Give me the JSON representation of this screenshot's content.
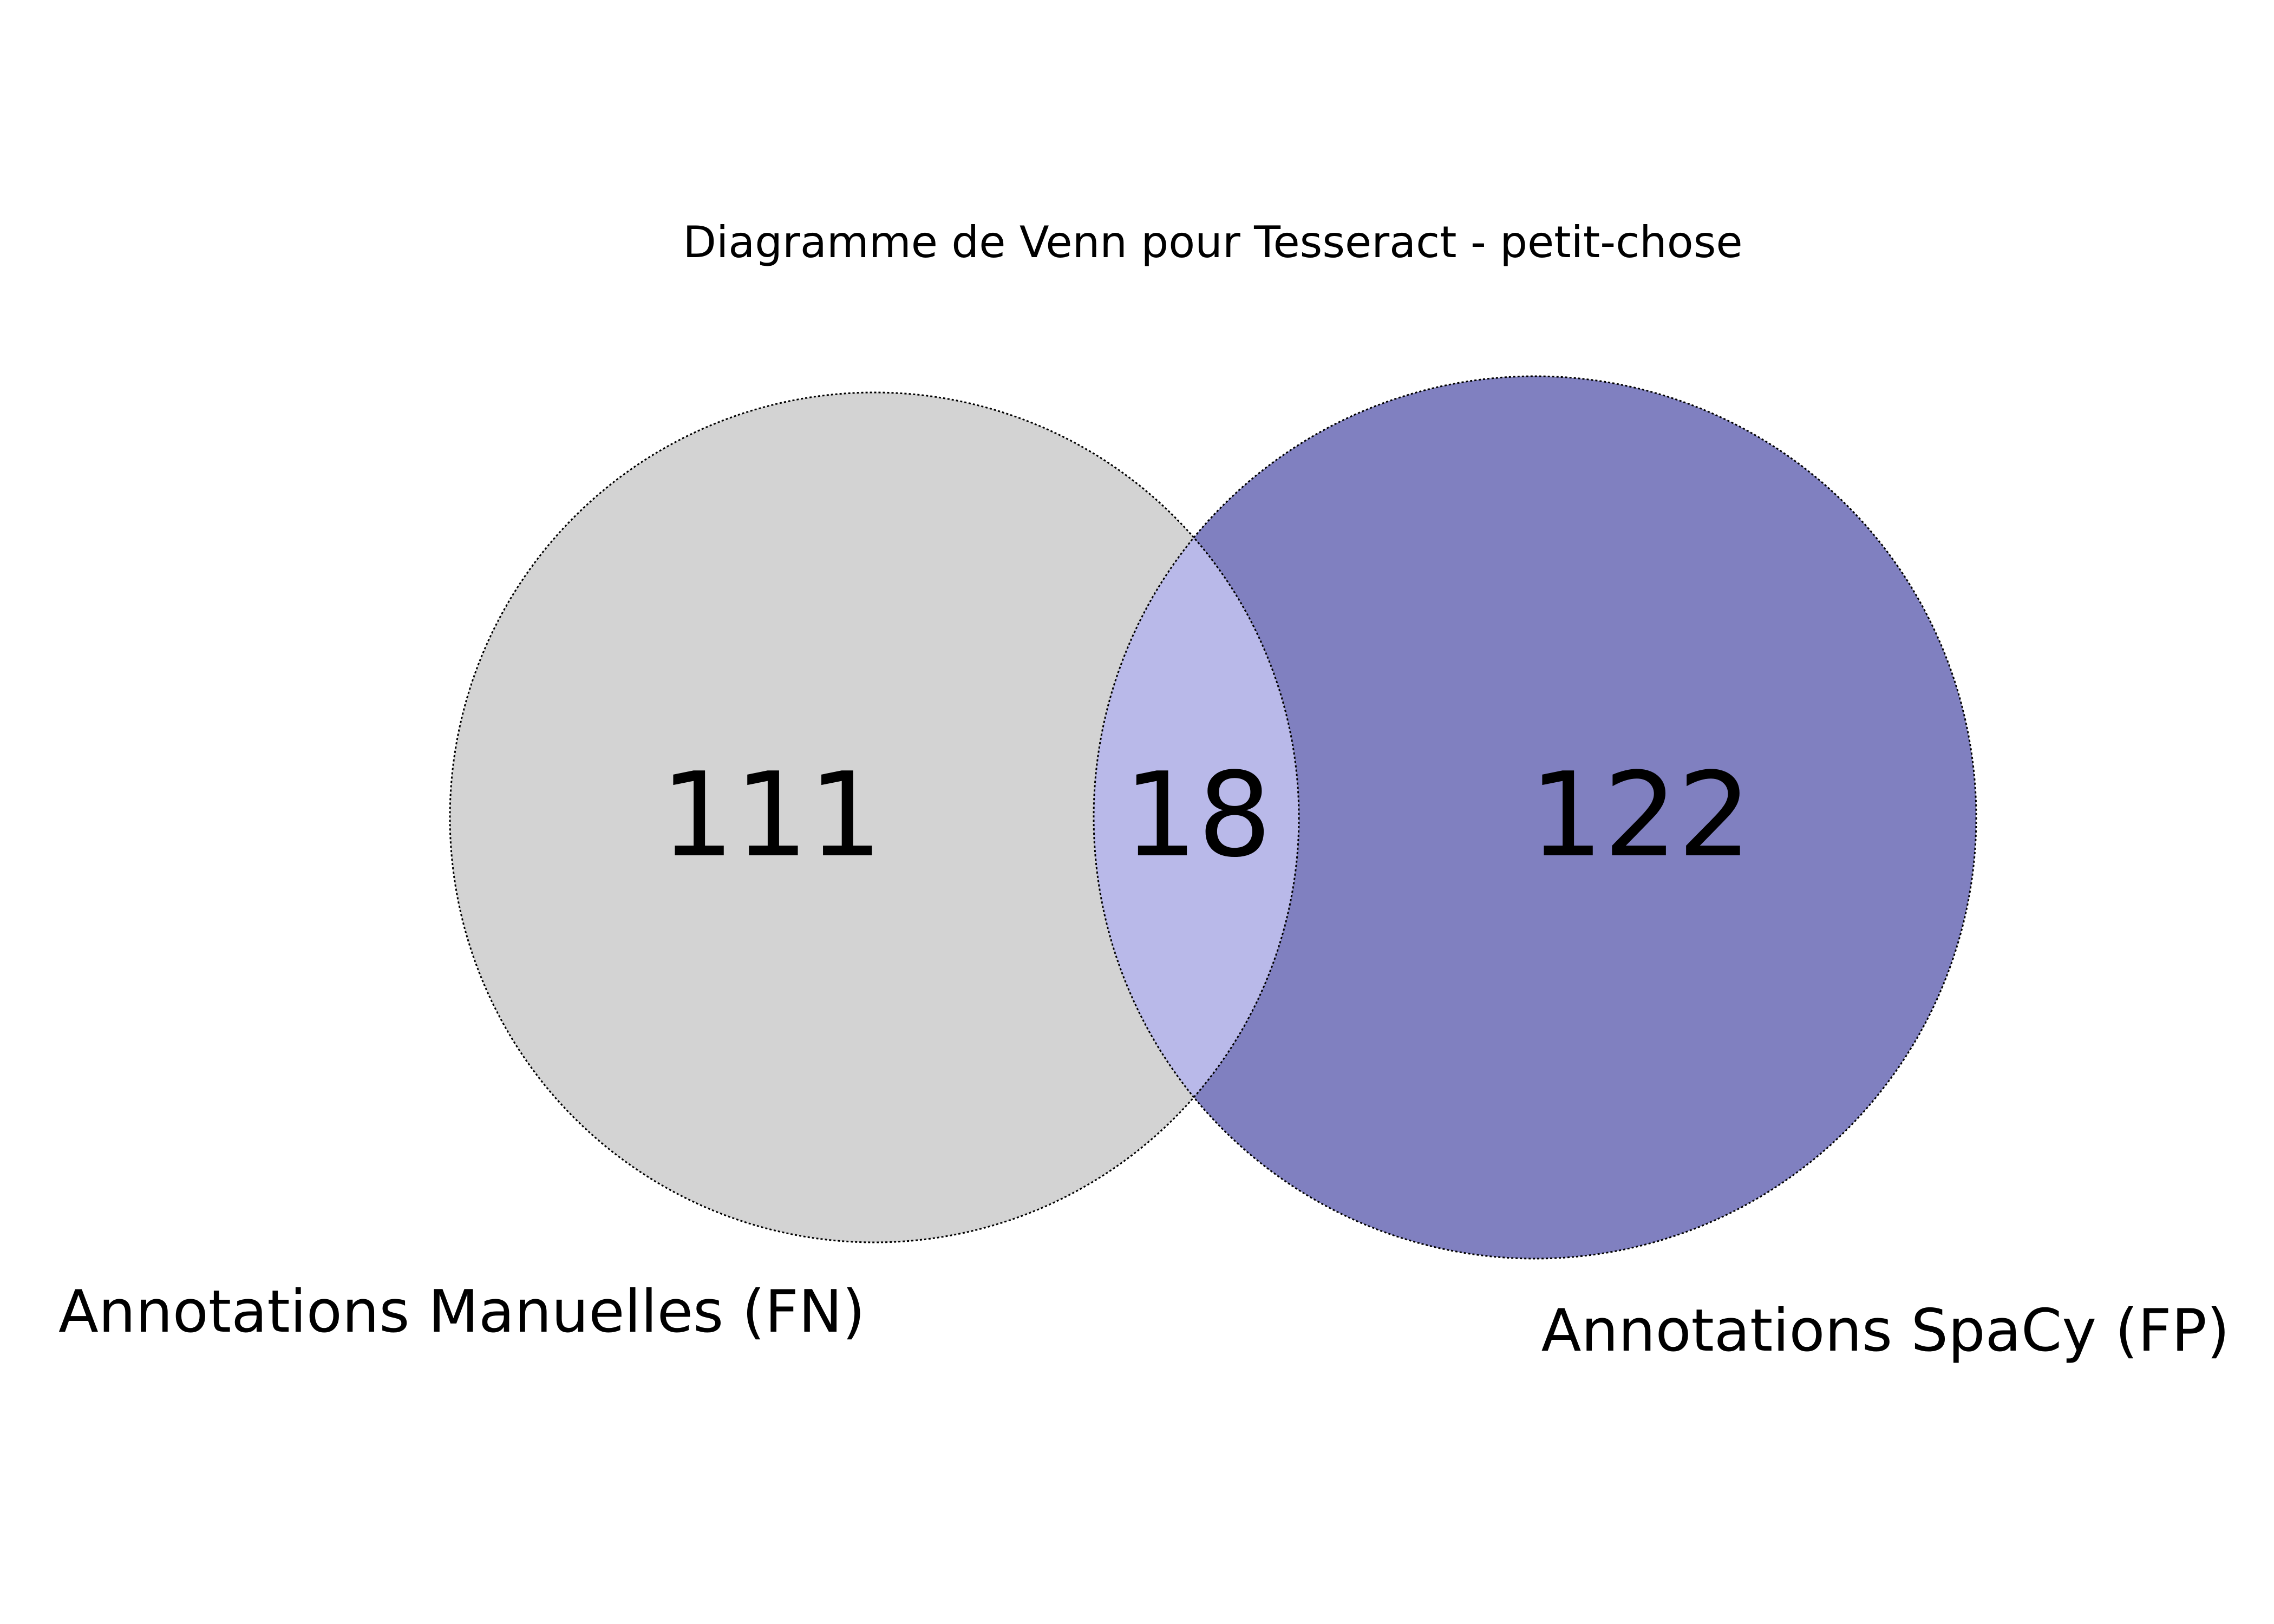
{
  "title": "Diagramme de Venn pour Tesseract - petit-chose",
  "sets": [
    {
      "name": "Annotations Manuelles (FN)",
      "color": "#d3d3d3"
    },
    {
      "name": "Annotations SpaCy (FP)",
      "color": "#8080c0"
    }
  ],
  "intersection_color": "#b9b9e9",
  "counts": {
    "only_a": "111",
    "both": "18",
    "only_b": "122"
  }
}
